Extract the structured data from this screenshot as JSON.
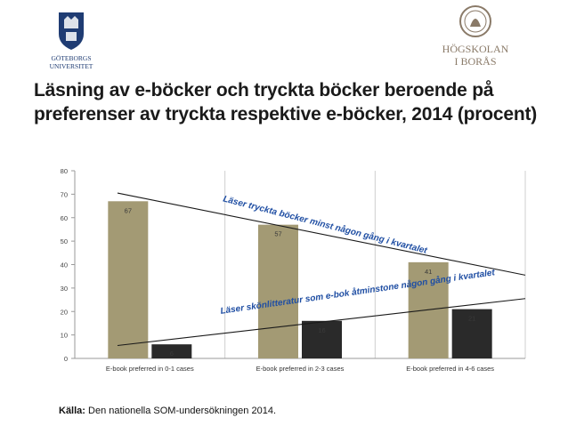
{
  "header": {
    "title_line1": "Läsning av e-böcker och tryckta böcker beroende på",
    "title_line2": "preferenser av tryckta respektive e-böcker, 2014 (procent)"
  },
  "logos": {
    "left": {
      "name": "Göteborgs Universitet",
      "text_line1": "GÖTEBORGS",
      "text_line2": "UNIVERSITET",
      "color": "#1f3c73"
    },
    "right": {
      "name": "Högskolan i Borås",
      "text_line1": "HÖGSKOLAN",
      "text_line2": "I BORÅS",
      "color": "#8a7a68"
    }
  },
  "chart_data": {
    "type": "bar",
    "categories": [
      "E-book preferred in 0-1 cases",
      "E-book preferred in 2-3 cases",
      "E-book preferred in 4-6 cases"
    ],
    "series": [
      {
        "values": [
          67,
          57,
          41
        ],
        "color": "#a39a74"
      },
      {
        "values": [
          6,
          16,
          21
        ],
        "color": "#2a2a2a"
      }
    ],
    "ylim": [
      0,
      80
    ],
    "yticks": [
      0,
      10,
      20,
      30,
      40,
      50,
      60,
      70,
      80
    ],
    "grid": "vertical separators",
    "annotations": [
      {
        "text": "Läser tryckta böcker minst någon gång i kvartalet",
        "trend": "descending"
      },
      {
        "text": "Läser skönlitteratur som e-bok åtminstone någon gång i kvartalet",
        "trend": "ascending"
      }
    ]
  },
  "footer": {
    "source_label": "Källa:",
    "source_text": " Den nationella SOM-undersökningen 2014."
  }
}
